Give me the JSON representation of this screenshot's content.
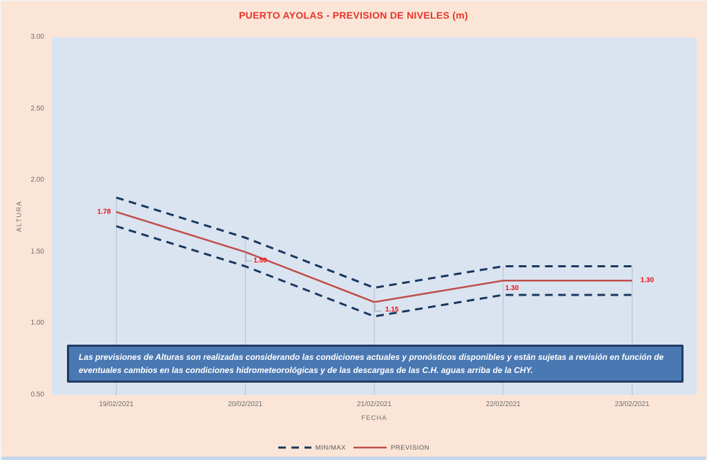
{
  "chart_data": {
    "type": "line",
    "title": "PUERTO AYOLAS - PREVISION DE NIVELES (m)",
    "xlabel": "FECHA",
    "ylabel": "ALTURA",
    "categories": [
      "19/02/2021",
      "20/02/2021",
      "21/02/2021",
      "22/02/2021",
      "23/02/2021"
    ],
    "series": [
      {
        "name": "PREVISION",
        "values": [
          1.78,
          1.5,
          1.15,
          1.3,
          1.3
        ],
        "color": "#bf4e47",
        "style": "solid"
      },
      {
        "name": "MAX",
        "values": [
          1.88,
          1.6,
          1.25,
          1.4,
          1.4
        ],
        "color": "#17375e",
        "style": "dashed"
      },
      {
        "name": "MIN",
        "values": [
          1.68,
          1.4,
          1.05,
          1.2,
          1.2
        ],
        "color": "#17375e",
        "style": "dashed"
      }
    ],
    "data_labels": [
      "1.78",
      "1.50",
      "1.15",
      "1.30",
      "1.30"
    ],
    "ylim": [
      0.5,
      3.0
    ],
    "y_ticks": [
      "3.00",
      "2.50",
      "2.00",
      "1.50",
      "1.00",
      "0.50"
    ],
    "grid": "vertical drop lines from MAX series to x-axis, no horizontal gridlines",
    "legend_position": "bottom center",
    "legend": [
      {
        "label": "MIN/MAX",
        "style": "dashed"
      },
      {
        "label": "PREVISION",
        "style": "solid"
      }
    ]
  },
  "annotation_box": {
    "text": "Las previsiones de Alturas son realizadas considerando las condiciones actuales y pronósticos disponibles y están sujetas a revisión en función de eventuales cambios en las condiciones hidrometeorológicas y de las descargas de las C.H. aguas arriba de la CHY."
  },
  "colors": {
    "background": "#fbe5d6",
    "plot_background": "#dae3f0",
    "prevision_line": "#bf4e47",
    "minmax_line": "#17375e",
    "data_label": "#f20d0d",
    "title": "#e9332c",
    "axis_text": "#6f6f6f",
    "drop_line": "#b9bfc7",
    "textbox_fill": "#4a78b2",
    "textbox_border": "#1f3a63",
    "legend_text": "#595959",
    "bottom_strip": "#c5d7ea"
  }
}
